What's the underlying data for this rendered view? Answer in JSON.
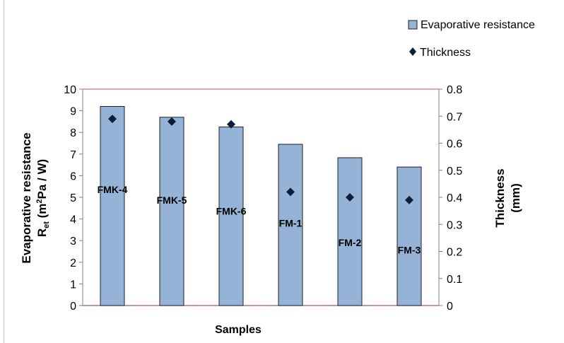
{
  "chart_data": {
    "type": "bar",
    "categories": [
      "FMK-4",
      "FMK-5",
      "FMK-6",
      "FM-1",
      "FM-2",
      "FM-3"
    ],
    "series": [
      {
        "name": "Evaporative resistance",
        "type": "bar",
        "axis": "left",
        "values": [
          9.2,
          8.7,
          8.25,
          7.45,
          6.83,
          6.4
        ],
        "color": "#95b3d7",
        "edge_color": "#1f1f1f"
      },
      {
        "name": "Thickness",
        "type": "scatter",
        "axis": "right",
        "marker": "diamond",
        "values": [
          0.69,
          0.68,
          0.67,
          0.42,
          0.4,
          0.39
        ],
        "color": "#0b1f3a"
      }
    ],
    "xlabel": "Samples",
    "ylabel": {
      "line1": "Evaporative resistance",
      "sym": "R",
      "sub": "et",
      "open": " (m",
      "sup": "2",
      "close": "Pa / W)"
    },
    "y2label": {
      "line1": "Thickness",
      "line2": "(mm)"
    },
    "ylim": [
      0,
      10
    ],
    "yticks": [
      "0",
      "1",
      "2",
      "3",
      "4",
      "5",
      "6",
      "7",
      "8",
      "9",
      "10"
    ],
    "y2lim": [
      0,
      0.8
    ],
    "y2ticks": [
      "0",
      "0.1",
      "0.2",
      "0.3",
      "0.4",
      "0.5",
      "0.6",
      "0.7",
      "0.8"
    ],
    "category_label_y": [
      5.2,
      4.7,
      4.2,
      3.65,
      2.75,
      2.4
    ],
    "frame_color": "#c0504d",
    "grid": false,
    "legend": {
      "position": "top-right",
      "items": [
        "Evaporative resistance",
        "Thickness"
      ]
    }
  }
}
